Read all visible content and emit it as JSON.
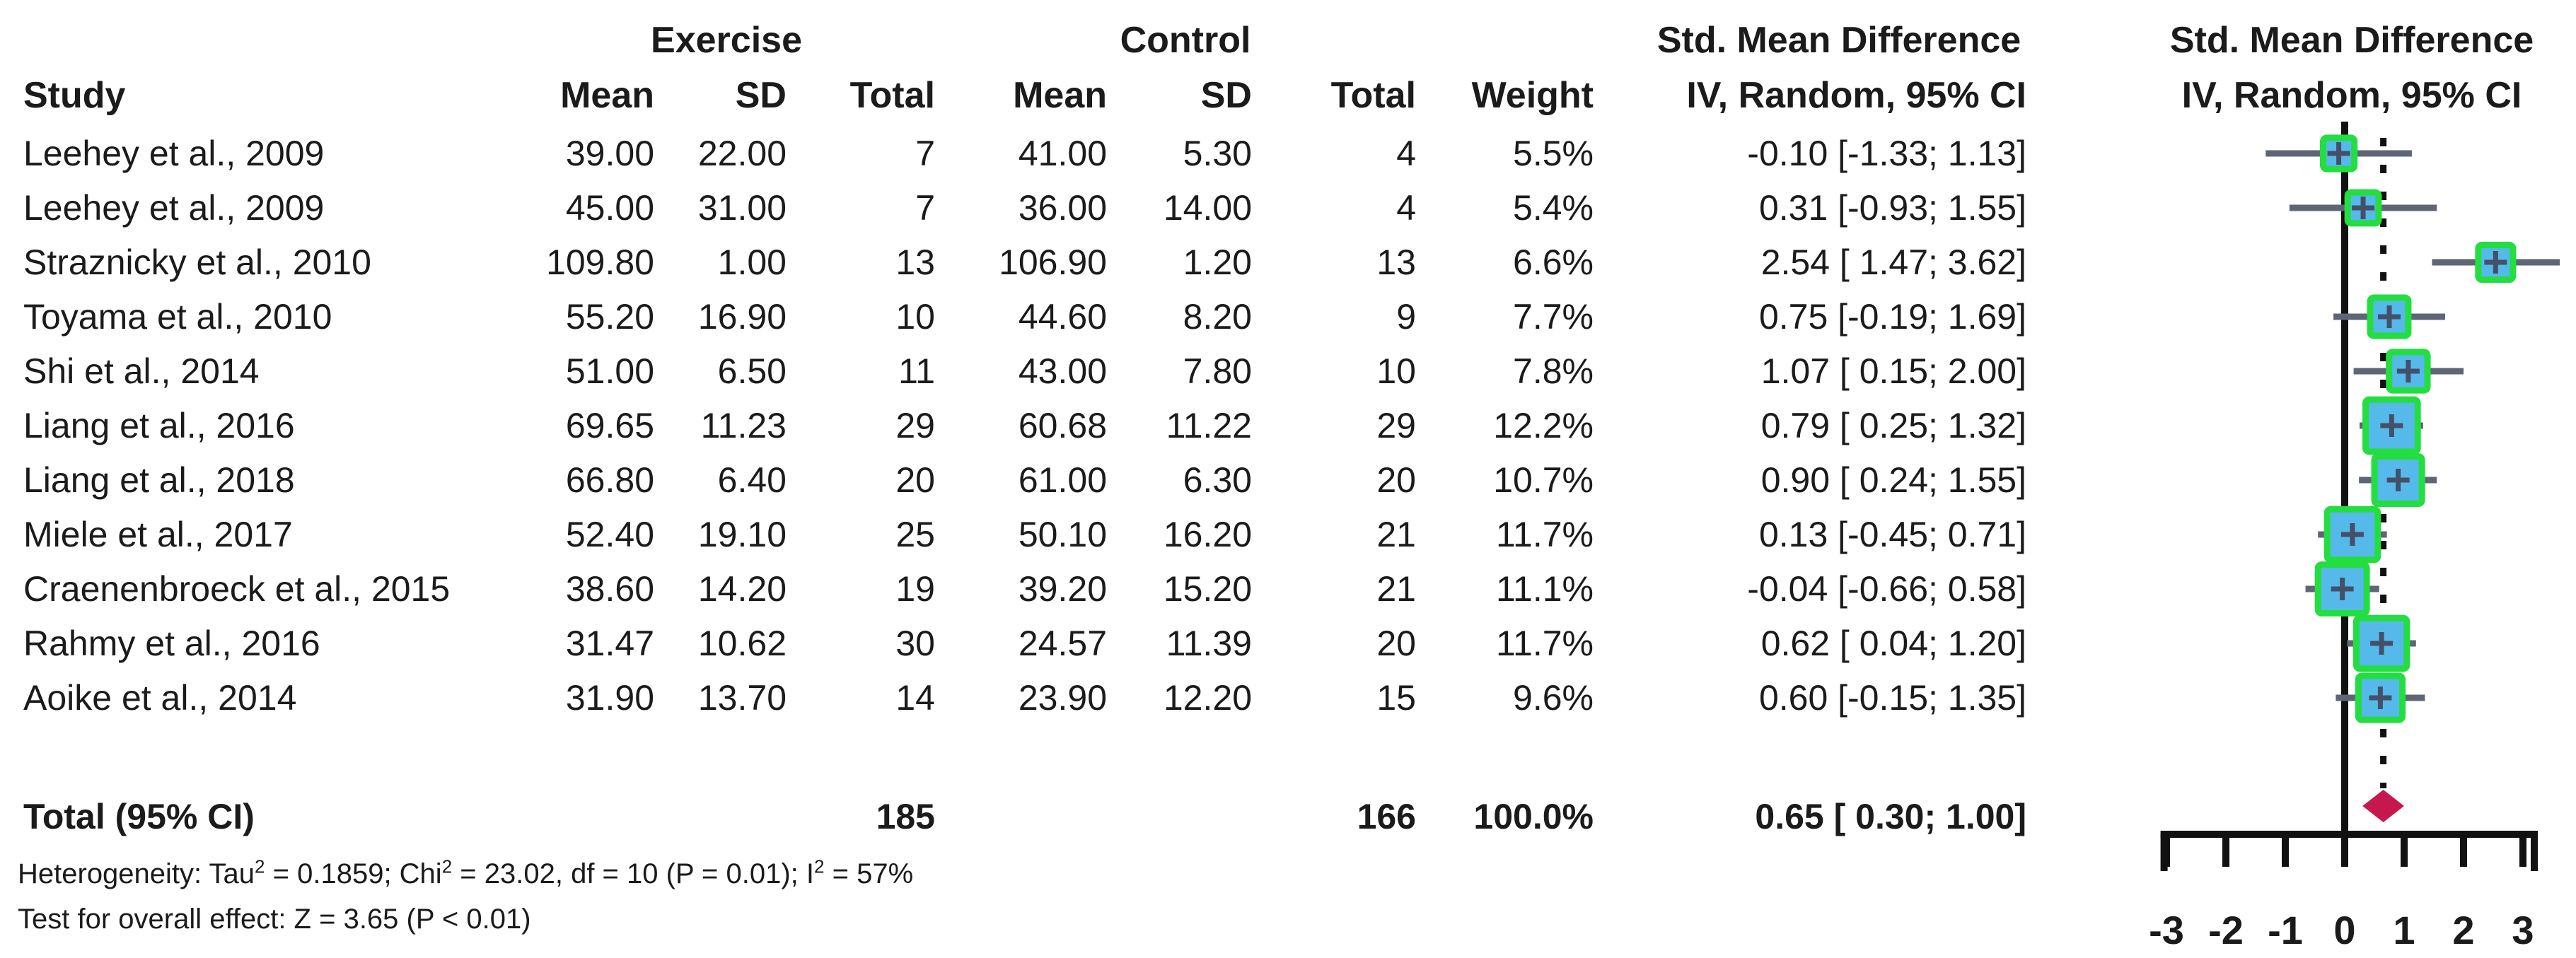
{
  "header": {
    "exercise_group": "Exercise",
    "control_group": "Control",
    "smd_title": "Std. Mean Difference",
    "smd_subtitle": "IV, Random, 95% CI",
    "plot_title": "Std. Mean Difference",
    "plot_subtitle": "IV, Random, 95% CI",
    "study": "Study",
    "mean": "Mean",
    "sd": "SD",
    "total": "Total",
    "weight": "Weight"
  },
  "table": {
    "rows": [
      {
        "study": "Leehey et al., 2009",
        "ex_mean": "39.00",
        "ex_sd": "22.00",
        "ex_total": "7",
        "c_mean": "41.00",
        "c_sd": "5.30",
        "c_total": "4",
        "weight": "5.5%",
        "ci_text": "-0.10 [-1.33; 1.13]"
      },
      {
        "study": "Leehey et al., 2009",
        "ex_mean": "45.00",
        "ex_sd": "31.00",
        "ex_total": "7",
        "c_mean": "36.00",
        "c_sd": "14.00",
        "c_total": "4",
        "weight": "5.4%",
        "ci_text": "0.31 [-0.93; 1.55]"
      },
      {
        "study": "Straznicky et al., 2010",
        "ex_mean": "109.80",
        "ex_sd": "1.00",
        "ex_total": "13",
        "c_mean": "106.90",
        "c_sd": "1.20",
        "c_total": "13",
        "weight": "6.6%",
        "ci_text": "2.54 [ 1.47; 3.62]"
      },
      {
        "study": "Toyama et al., 2010",
        "ex_mean": "55.20",
        "ex_sd": "16.90",
        "ex_total": "10",
        "c_mean": "44.60",
        "c_sd": "8.20",
        "c_total": "9",
        "weight": "7.7%",
        "ci_text": "0.75 [-0.19; 1.69]"
      },
      {
        "study": "Shi et al., 2014",
        "ex_mean": "51.00",
        "ex_sd": "6.50",
        "ex_total": "11",
        "c_mean": "43.00",
        "c_sd": "7.80",
        "c_total": "10",
        "weight": "7.8%",
        "ci_text": "1.07 [ 0.15; 2.00]"
      },
      {
        "study": "Liang et al., 2016",
        "ex_mean": "69.65",
        "ex_sd": "11.23",
        "ex_total": "29",
        "c_mean": "60.68",
        "c_sd": "11.22",
        "c_total": "29",
        "weight": "12.2%",
        "ci_text": "0.79 [ 0.25; 1.32]"
      },
      {
        "study": "Liang et al., 2018",
        "ex_mean": "66.80",
        "ex_sd": "6.40",
        "ex_total": "20",
        "c_mean": "61.00",
        "c_sd": "6.30",
        "c_total": "20",
        "weight": "10.7%",
        "ci_text": "0.90 [ 0.24; 1.55]"
      },
      {
        "study": "Miele et al., 2017",
        "ex_mean": "52.40",
        "ex_sd": "19.10",
        "ex_total": "25",
        "c_mean": "50.10",
        "c_sd": "16.20",
        "c_total": "21",
        "weight": "11.7%",
        "ci_text": "0.13 [-0.45; 0.71]"
      },
      {
        "study": "Craenenbroeck et al., 2015",
        "ex_mean": "38.60",
        "ex_sd": "14.20",
        "ex_total": "19",
        "c_mean": "39.20",
        "c_sd": "15.20",
        "c_total": "21",
        "weight": "11.1%",
        "ci_text": "-0.04 [-0.66; 0.58]"
      },
      {
        "study": "Rahmy et al., 2016",
        "ex_mean": "31.47",
        "ex_sd": "10.62",
        "ex_total": "30",
        "c_mean": "24.57",
        "c_sd": "11.39",
        "c_total": "20",
        "weight": "11.7%",
        "ci_text": "0.62 [ 0.04; 1.20]"
      },
      {
        "study": "Aoike et al., 2014",
        "ex_mean": "31.90",
        "ex_sd": "13.70",
        "ex_total": "14",
        "c_mean": "23.90",
        "c_sd": "12.20",
        "c_total": "15",
        "weight": "9.6%",
        "ci_text": "0.60 [-0.15; 1.35]"
      }
    ],
    "total_row": {
      "label": "Total (95% CI)",
      "ex_total": "185",
      "c_total": "166",
      "weight": "100.0%",
      "ci_text": "0.65 [ 0.30; 1.00]"
    },
    "heterogeneity": {
      "p1": "Heterogeneity: Tau",
      "s1": "2",
      "p2": " = 0.1859; Chi",
      "s2": "2",
      "p3": " = 23.02, df = 10 (P = 0.01); I",
      "s3": "2",
      "p4": " = 57%"
    },
    "overall_test": "Test for overall effect: Z = 3.65 (P < 0.01)"
  },
  "chart_data": {
    "type": "forest",
    "title": "Std. Mean Difference",
    "subtitle": "IV, Random, 95% CI",
    "x_ticks": [
      -3,
      -2,
      -1,
      0,
      1,
      2,
      3
    ],
    "xlim": [
      -3.1,
      3.25
    ],
    "zero_line": 0,
    "pooled_reference_line": 0.65,
    "studies": [
      {
        "label": "Leehey et al., 2009",
        "smd": -0.1,
        "lo": -1.33,
        "hi": 1.13,
        "weight_pct": 5.5
      },
      {
        "label": "Leehey et al., 2009",
        "smd": 0.31,
        "lo": -0.93,
        "hi": 1.55,
        "weight_pct": 5.4
      },
      {
        "label": "Straznicky et al., 2010",
        "smd": 2.54,
        "lo": 1.47,
        "hi": 3.62,
        "weight_pct": 6.6
      },
      {
        "label": "Toyama et al., 2010",
        "smd": 0.75,
        "lo": -0.19,
        "hi": 1.69,
        "weight_pct": 7.7
      },
      {
        "label": "Shi et al., 2014",
        "smd": 1.07,
        "lo": 0.15,
        "hi": 2.0,
        "weight_pct": 7.8
      },
      {
        "label": "Liang et al., 2016",
        "smd": 0.79,
        "lo": 0.25,
        "hi": 1.32,
        "weight_pct": 12.2
      },
      {
        "label": "Liang et al., 2018",
        "smd": 0.9,
        "lo": 0.24,
        "hi": 1.55,
        "weight_pct": 10.7
      },
      {
        "label": "Miele et al., 2017",
        "smd": 0.13,
        "lo": -0.45,
        "hi": 0.71,
        "weight_pct": 11.7
      },
      {
        "label": "Craenenbroeck et al., 2015",
        "smd": -0.04,
        "lo": -0.66,
        "hi": 0.58,
        "weight_pct": 11.1
      },
      {
        "label": "Rahmy et al., 2016",
        "smd": 0.62,
        "lo": 0.04,
        "hi": 1.2,
        "weight_pct": 11.7
      },
      {
        "label": "Aoike et al., 2014",
        "smd": 0.6,
        "lo": -0.15,
        "hi": 1.35,
        "weight_pct": 9.6
      }
    ],
    "pooled": {
      "label": "Total (95% CI)",
      "smd": 0.65,
      "lo": 0.3,
      "hi": 1.0
    },
    "colors": {
      "square_fill": "#55b9e9",
      "square_border": "#24dd40",
      "whisker": "#5e6575",
      "point_marker": "#44506a",
      "diamond": "#c6174f",
      "axis": "#111111"
    }
  }
}
